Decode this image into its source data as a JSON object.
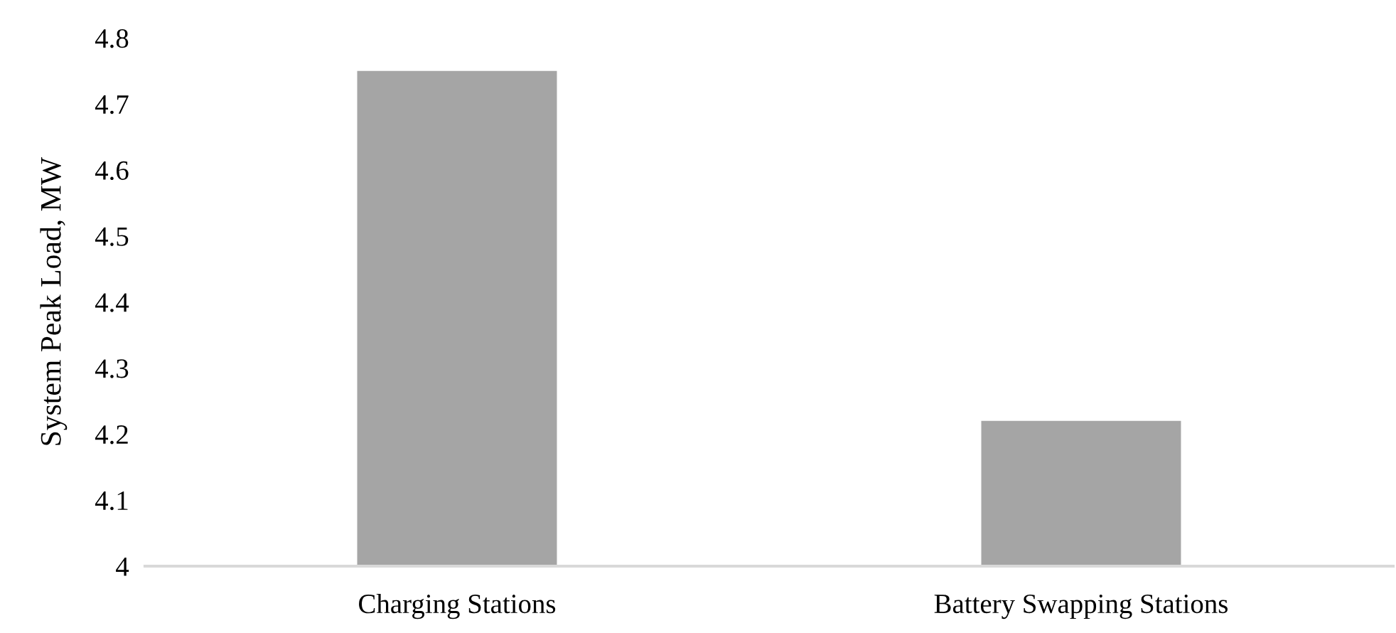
{
  "chart_data": {
    "type": "bar",
    "ylabel": "System Peak Load, MW",
    "categories": [
      "Charging Stations",
      "Battery Swapping Stations"
    ],
    "values": [
      4.75,
      4.22
    ],
    "color": "#a5a5a5",
    "ylim": [
      4,
      4.8
    ],
    "yticks": [
      4,
      4.1,
      4.2,
      4.3,
      4.4,
      4.5,
      4.6,
      4.7,
      4.8
    ],
    "grid": false,
    "legend": false
  }
}
